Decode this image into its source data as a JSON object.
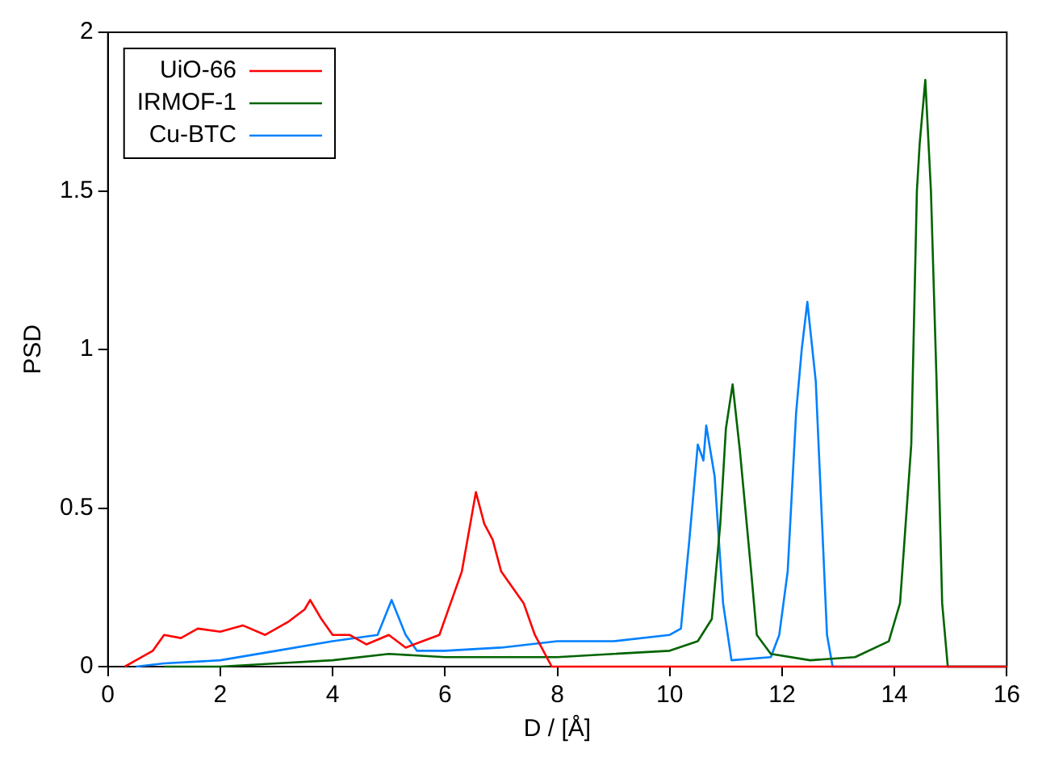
{
  "chart_data": {
    "type": "line",
    "xlabel": "D / [Å]",
    "ylabel": "PSD",
    "xlim": [
      0,
      16
    ],
    "xticks": [
      0,
      2,
      4,
      6,
      8,
      10,
      12,
      14,
      16
    ],
    "ylim": [
      0,
      2
    ],
    "yticks": [
      0,
      0.5,
      {
        "value": 1,
        "label": "1"
      },
      1.5,
      {
        "value": 2,
        "label": "2"
      }
    ],
    "grid": false,
    "legend": "top left",
    "marker": "none",
    "line_style": "solid",
    "series": [
      {
        "name": "UiO-66",
        "color": "#ff0000",
        "x": [
          0.3,
          0.5,
          0.8,
          1.0,
          1.3,
          1.6,
          2.0,
          2.4,
          2.8,
          3.2,
          3.5,
          3.6,
          3.8,
          4.0,
          4.3,
          4.6,
          5.0,
          5.3,
          5.6,
          5.9,
          6.1,
          6.3,
          6.45,
          6.55,
          6.7,
          6.85,
          7.0,
          7.2,
          7.4,
          7.6,
          7.75,
          7.9,
          8.5,
          10,
          12,
          14,
          16
        ],
        "values": [
          0,
          0.02,
          0.05,
          0.1,
          0.09,
          0.12,
          0.11,
          0.13,
          0.1,
          0.14,
          0.18,
          0.21,
          0.15,
          0.1,
          0.1,
          0.07,
          0.1,
          0.06,
          0.08,
          0.1,
          0.2,
          0.3,
          0.45,
          0.55,
          0.45,
          0.4,
          0.3,
          0.25,
          0.2,
          0.1,
          0.05,
          0,
          0,
          0,
          0,
          0,
          0
        ]
      },
      {
        "name": "IRMOF-1",
        "color": "#006400",
        "x": [
          1,
          2,
          3,
          4,
          5,
          6,
          7,
          8,
          9,
          10,
          10.5,
          10.75,
          10.9,
          11.0,
          11.12,
          11.25,
          11.45,
          11.55,
          11.8,
          12.5,
          13.3,
          13.9,
          14.1,
          14.3,
          14.4,
          14.45,
          14.55,
          14.65,
          14.75,
          14.85,
          14.95,
          16
        ],
        "values": [
          0,
          0,
          0.01,
          0.02,
          0.04,
          0.03,
          0.03,
          0.03,
          0.04,
          0.05,
          0.08,
          0.15,
          0.45,
          0.75,
          0.89,
          0.68,
          0.3,
          0.1,
          0.04,
          0.02,
          0.03,
          0.08,
          0.2,
          0.7,
          1.5,
          1.65,
          1.85,
          1.5,
          0.9,
          0.2,
          0,
          0
        ]
      },
      {
        "name": "Cu-BTC",
        "color": "#0080ff",
        "x": [
          0.5,
          1,
          2,
          3,
          4,
          4.8,
          5.05,
          5.3,
          5.5,
          6,
          7,
          8,
          9,
          10,
          10.2,
          10.35,
          10.5,
          10.6,
          10.65,
          10.8,
          10.95,
          11.1,
          11.8,
          11.95,
          12.1,
          12.25,
          12.35,
          12.45,
          12.6,
          12.7,
          12.8,
          12.9,
          14,
          16
        ],
        "values": [
          0,
          0.01,
          0.02,
          0.05,
          0.08,
          0.1,
          0.21,
          0.1,
          0.05,
          0.05,
          0.06,
          0.08,
          0.08,
          0.1,
          0.12,
          0.4,
          0.7,
          0.65,
          0.76,
          0.6,
          0.2,
          0.02,
          0.03,
          0.1,
          0.3,
          0.8,
          1.0,
          1.15,
          0.9,
          0.5,
          0.1,
          0,
          0,
          0
        ]
      }
    ]
  }
}
